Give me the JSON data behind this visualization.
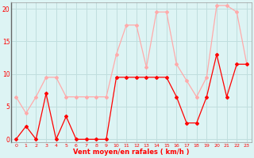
{
  "hours": [
    0,
    1,
    2,
    3,
    4,
    5,
    6,
    7,
    8,
    9,
    10,
    11,
    12,
    13,
    14,
    15,
    16,
    17,
    18,
    19,
    20,
    21,
    22,
    23
  ],
  "wind_mean": [
    0,
    2,
    0,
    7,
    0,
    3.5,
    0,
    0,
    0,
    0,
    9.5,
    9.5,
    9.5,
    9.5,
    9.5,
    9.5,
    6.5,
    2.5,
    2.5,
    6.5,
    13,
    6.5,
    11.5,
    11.5
  ],
  "wind_gust": [
    6.5,
    4,
    6.5,
    9.5,
    9.5,
    6.5,
    6.5,
    6.5,
    6.5,
    6.5,
    13,
    17.5,
    17.5,
    11,
    19.5,
    19.5,
    11.5,
    9,
    6.5,
    9.5,
    20.5,
    20.5,
    19.5,
    11.5
  ],
  "color_mean": "#ff0000",
  "color_gust": "#ffaaaa",
  "bg_color": "#ddf4f4",
  "grid_color": "#c0dede",
  "xlabel": "Vent moyen/en rafales ( km/h )",
  "ylim": [
    -0.5,
    21
  ],
  "yticks": [
    0,
    5,
    10,
    15,
    20
  ],
  "xlim": [
    -0.5,
    23.5
  ]
}
